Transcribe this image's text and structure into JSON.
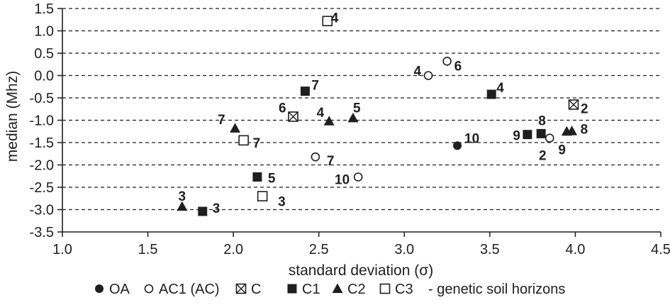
{
  "chart_data": {
    "type": "scatter",
    "xlabel": "standard deviation (σ)",
    "ylabel": "median (Mhz)",
    "xlim": [
      1.0,
      4.5
    ],
    "ylim": [
      -3.5,
      1.5
    ],
    "x_ticks": [
      "1.0",
      "1.5",
      "2.0",
      "2.5",
      "3.0",
      "3.5",
      "4.0",
      "4.5"
    ],
    "y_ticks": [
      "1.5",
      "1.0",
      "0.5",
      "0.0",
      "-0.5",
      "-1.0",
      "-1.5",
      "-2.0",
      "-2.5",
      "-3.0",
      "-3.5"
    ],
    "grid": "horizontal dashed",
    "legend_position": "bottom",
    "legend_suffix": "- genetic soil horizons",
    "series": [
      {
        "name": "OA",
        "marker": "filled-circle",
        "points": [
          {
            "x": 3.31,
            "y": -1.57,
            "label": "10"
          }
        ]
      },
      {
        "name": "AC1 (AC)",
        "marker": "open-circle",
        "points": [
          {
            "x": 3.14,
            "y": 0.0,
            "label": "4"
          },
          {
            "x": 3.25,
            "y": 0.32,
            "label": "6"
          },
          {
            "x": 2.48,
            "y": -1.82,
            "label": "7"
          },
          {
            "x": 2.73,
            "y": -2.27,
            "label": "10"
          },
          {
            "x": 3.85,
            "y": -1.4,
            "label": "2"
          }
        ]
      },
      {
        "name": "C",
        "marker": "crossed-square",
        "points": [
          {
            "x": 2.35,
            "y": -0.92,
            "label": "6"
          },
          {
            "x": 3.99,
            "y": -0.65,
            "label": "2"
          }
        ]
      },
      {
        "name": "C1",
        "marker": "filled-square",
        "points": [
          {
            "x": 2.42,
            "y": -0.35,
            "label": "7"
          },
          {
            "x": 3.51,
            "y": -0.42,
            "label": "4"
          },
          {
            "x": 2.14,
            "y": -2.27,
            "label": "5"
          },
          {
            "x": 1.82,
            "y": -3.04,
            "label": "3"
          },
          {
            "x": 3.72,
            "y": -1.32,
            "label": "9"
          },
          {
            "x": 3.8,
            "y": -1.3,
            "label": "8"
          }
        ]
      },
      {
        "name": "C2",
        "marker": "filled-triangle",
        "points": [
          {
            "x": 2.01,
            "y": -1.18,
            "label": "7"
          },
          {
            "x": 2.56,
            "y": -1.02,
            "label": "4"
          },
          {
            "x": 2.7,
            "y": -0.95,
            "label": "5"
          },
          {
            "x": 1.7,
            "y": -2.93,
            "label": "3"
          },
          {
            "x": 3.95,
            "y": -1.25,
            "label": "9"
          },
          {
            "x": 3.98,
            "y": -1.24,
            "label": "8"
          }
        ]
      },
      {
        "name": "C3",
        "marker": "open-square",
        "points": [
          {
            "x": 2.55,
            "y": 1.22,
            "label": "4"
          },
          {
            "x": 2.06,
            "y": -1.45,
            "label": "7"
          },
          {
            "x": 2.17,
            "y": -2.7,
            "label": "3"
          }
        ]
      }
    ]
  }
}
